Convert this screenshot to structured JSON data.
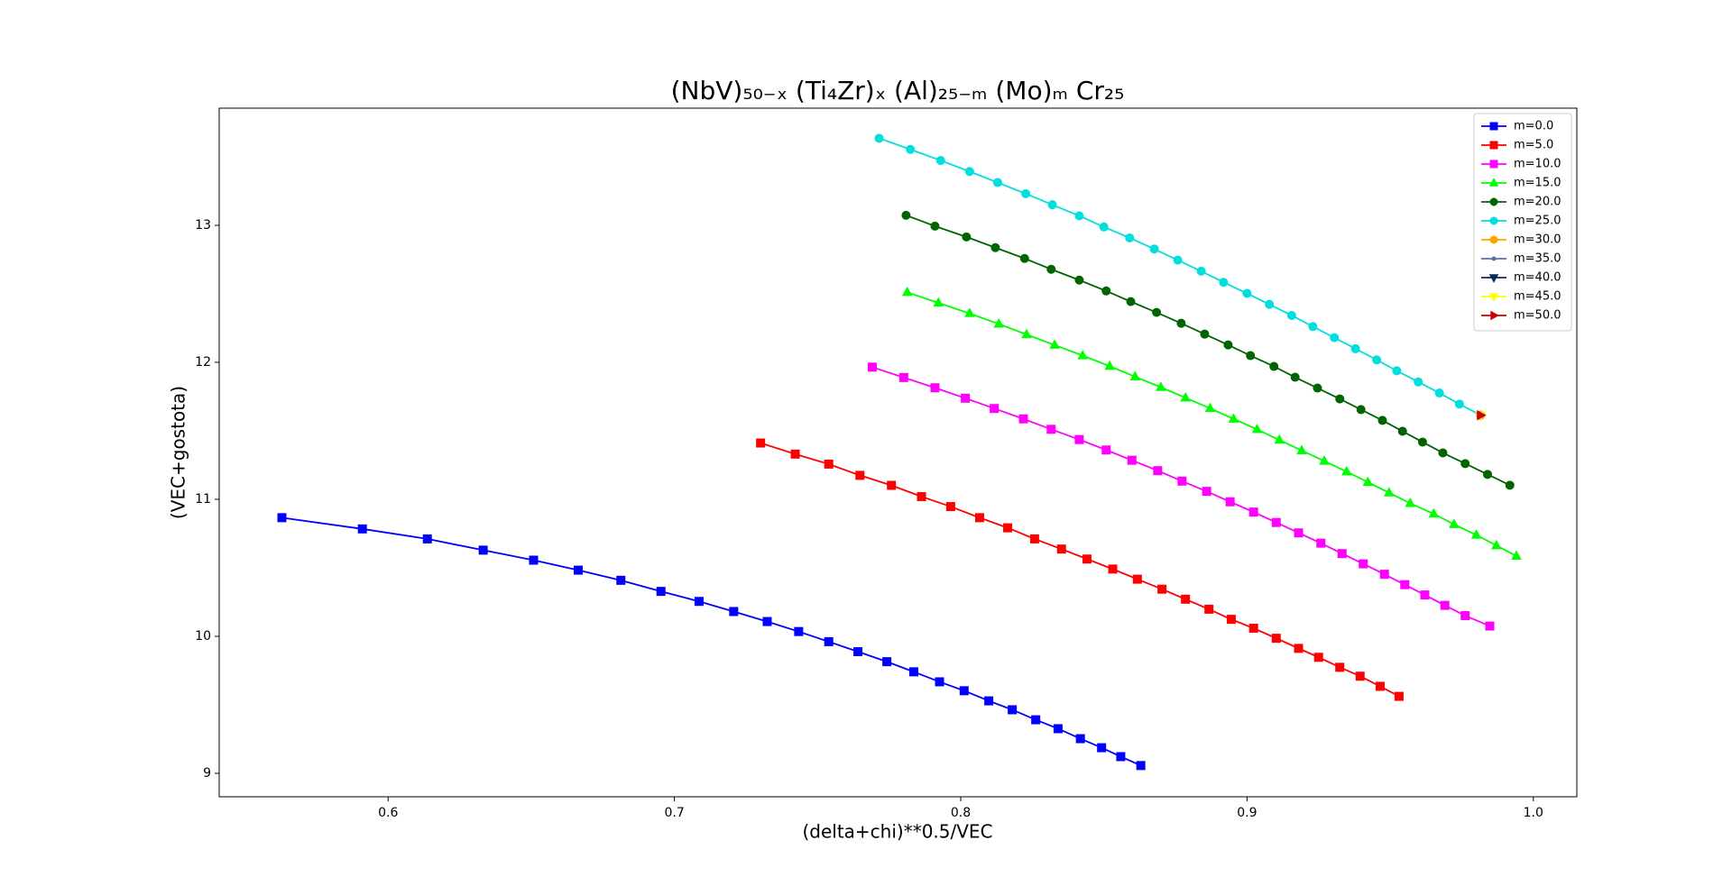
{
  "chart_data": {
    "type": "line",
    "title": "(NbV)₅₀₋ₓ (Ti₄Zr)ₓ (Al)₂₅₋ₘ (Mo)ₘ Cr₂₅",
    "x_label": "(delta+chi)**0.5/VEC",
    "y_label": "(VEC+gostota)",
    "xlim": [
      0.541,
      1.0152
    ],
    "ylim": [
      8.829,
      13.855
    ],
    "xticks": [
      0.6,
      0.7,
      0.8,
      0.9,
      {
        "value": 1,
        "label": "1.0"
      }
    ],
    "yticks": [
      9,
      10,
      11,
      12,
      13
    ],
    "grid": false,
    "legend": "upper right",
    "series": [
      {
        "name": "m=0.0",
        "color": "#0000ff",
        "marker": "s",
        "x": [
          0.5629,
          0.591,
          0.6137,
          0.6332,
          0.6508,
          0.6664,
          0.6813,
          0.6953,
          0.7086,
          0.7207,
          0.7324,
          0.7434,
          0.7539,
          0.7641,
          0.7742,
          0.7836,
          0.7926,
          0.8012,
          0.8098,
          0.818,
          0.8262,
          0.834,
          0.8418,
          0.8492,
          0.8559,
          0.8629
        ],
        "values": [
          10.866,
          10.784,
          10.711,
          10.629,
          10.556,
          10.483,
          10.409,
          10.328,
          10.255,
          10.181,
          10.108,
          10.035,
          9.961,
          9.888,
          9.815,
          9.741,
          9.668,
          9.603,
          9.529,
          9.464,
          9.391,
          9.326,
          9.253,
          9.187,
          9.122,
          9.057
        ]
      },
      {
        "name": "m=5.0",
        "color": "#ff0000",
        "marker": "s",
        "x": [
          0.7301,
          0.7422,
          0.7539,
          0.7648,
          0.7758,
          0.7863,
          0.7965,
          0.8066,
          0.8164,
          0.8258,
          0.8352,
          0.8441,
          0.8531,
          0.8617,
          0.8703,
          0.8785,
          0.8867,
          0.8945,
          0.9023,
          0.9102,
          0.918,
          0.925,
          0.9324,
          0.9395,
          0.9465,
          0.9531
        ],
        "values": [
          11.411,
          11.33,
          11.257,
          11.175,
          11.102,
          11.02,
          10.947,
          10.866,
          10.792,
          10.711,
          10.637,
          10.564,
          10.491,
          10.417,
          10.344,
          10.271,
          10.198,
          10.124,
          10.059,
          9.986,
          9.912,
          9.847,
          9.774,
          9.709,
          9.635,
          9.562
        ]
      },
      {
        "name": "m=10.0",
        "color": "#ff00ff",
        "marker": "s",
        "x": [
          0.7691,
          0.7801,
          0.791,
          0.8016,
          0.8117,
          0.8219,
          0.8316,
          0.8414,
          0.8508,
          0.8598,
          0.8688,
          0.8773,
          0.8859,
          0.8941,
          0.9023,
          0.9102,
          0.918,
          0.9258,
          0.9332,
          0.9406,
          0.948,
          0.9551,
          0.9621,
          0.9691,
          0.9762,
          0.9848
        ],
        "values": [
          11.965,
          11.889,
          11.814,
          11.738,
          11.663,
          11.587,
          11.511,
          11.436,
          11.36,
          11.285,
          11.209,
          11.133,
          11.058,
          10.982,
          10.907,
          10.831,
          10.755,
          10.68,
          10.604,
          10.529,
          10.453,
          10.377,
          10.302,
          10.226,
          10.151,
          10.075
        ]
      },
      {
        "name": "m=15.0",
        "color": "#00ff00",
        "marker": "^",
        "x": [
          0.7813,
          0.7922,
          0.8031,
          0.8133,
          0.823,
          0.8328,
          0.8426,
          0.852,
          0.8609,
          0.8699,
          0.8785,
          0.8871,
          0.8953,
          0.9035,
          0.9113,
          0.9191,
          0.927,
          0.9348,
          0.9422,
          0.9496,
          0.957,
          0.9652,
          0.9723,
          0.9801,
          0.9871,
          0.9941
        ],
        "values": [
          12.511,
          12.434,
          12.357,
          12.28,
          12.203,
          12.126,
          12.049,
          11.972,
          11.895,
          11.818,
          11.741,
          11.664,
          11.587,
          11.51,
          11.433,
          11.356,
          11.279,
          11.202,
          11.125,
          11.048,
          10.971,
          10.894,
          10.817,
          10.74,
          10.663,
          10.586
        ]
      },
      {
        "name": "m=20.0",
        "color": "#006400",
        "marker": "o",
        "x": [
          0.7809,
          0.791,
          0.802,
          0.8121,
          0.8223,
          0.8316,
          0.8414,
          0.8508,
          0.8594,
          0.8684,
          0.877,
          0.8852,
          0.8934,
          0.9012,
          0.9094,
          0.9168,
          0.9246,
          0.9324,
          0.9398,
          0.9473,
          0.9543,
          0.9613,
          0.9684,
          0.9762,
          0.984,
          0.9918
        ],
        "values": [
          13.073,
          12.994,
          12.915,
          12.837,
          12.758,
          12.679,
          12.6,
          12.521,
          12.443,
          12.364,
          12.285,
          12.206,
          12.127,
          12.049,
          11.97,
          11.891,
          11.812,
          11.733,
          11.655,
          11.576,
          11.497,
          11.418,
          11.339,
          11.261,
          11.182,
          11.103
        ]
      },
      {
        "name": "m=25.0",
        "color": "#00dede",
        "marker": "o",
        "x": [
          0.7715,
          0.7824,
          0.793,
          0.8031,
          0.8129,
          0.8227,
          0.832,
          0.8414,
          0.85,
          0.859,
          0.8676,
          0.8758,
          0.884,
          0.8918,
          0.9,
          0.9078,
          0.9156,
          0.923,
          0.9305,
          0.9379,
          0.9453,
          0.9523,
          0.9598,
          0.9672,
          0.9742,
          0.9816
        ],
        "values": [
          13.635,
          13.554,
          13.473,
          13.393,
          13.312,
          13.231,
          13.15,
          13.069,
          12.988,
          12.908,
          12.827,
          12.746,
          12.665,
          12.584,
          12.503,
          12.423,
          12.342,
          12.261,
          12.18,
          12.099,
          12.018,
          11.938,
          11.857,
          11.776,
          11.695,
          11.614
        ]
      },
      {
        "name": "m=30.0",
        "color": "#ffa500",
        "marker": "o",
        "x": [
          0.9816
        ],
        "values": [
          11.614
        ]
      },
      {
        "name": "m=35.0",
        "color": "#5a6fa0",
        "marker": ".",
        "x": [
          0.9816
        ],
        "values": [
          11.614
        ]
      },
      {
        "name": "m=40.0",
        "color": "#0a2a5a",
        "marker": "v",
        "x": [
          0.9816
        ],
        "values": [
          11.614
        ]
      },
      {
        "name": "m=45.0",
        "color": "#ffff00",
        "marker": "v",
        "x": [
          0.9816
        ],
        "values": [
          11.614
        ]
      },
      {
        "name": "m=50.0",
        "color": "#cc0000",
        "marker": ">",
        "x": [
          0.9816
        ],
        "values": [
          11.614
        ]
      }
    ]
  }
}
